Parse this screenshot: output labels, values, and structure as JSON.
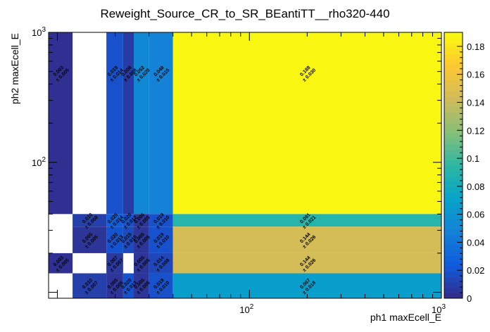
{
  "chart_data": {
    "type": "heatmap",
    "title": "Reweight_Source_CR_to_SR_BEantiTT__rho320-440",
    "xlabel": "ph1 maxEcell_E",
    "ylabel": "ph2 maxEcell_E",
    "x_scale": "log",
    "y_scale": "log",
    "xlim": [
      9,
      1000
    ],
    "ylim": [
      9,
      1000
    ],
    "x_tick_labels": [
      {
        "value": 100,
        "base": "10",
        "exp": "2"
      },
      {
        "value": 1000,
        "base": "10",
        "exp": "3"
      }
    ],
    "y_tick_labels": [
      {
        "value": 100,
        "base": "10",
        "exp": "2"
      },
      {
        "value": 1000,
        "base": "10",
        "exp": "3"
      }
    ],
    "x_edges": [
      9,
      12,
      18,
      22,
      25,
      30,
      40,
      1000
    ],
    "y_edges": [
      9,
      14,
      20,
      32,
      40,
      1000
    ],
    "colorbar": {
      "min": 0,
      "max": 0.19,
      "tick_values": [
        0,
        0.02,
        0.04,
        0.06,
        0.08,
        0.1,
        0.12,
        0.14,
        0.16,
        0.18
      ],
      "tick_labels": [
        "0",
        "0.02",
        "0.04",
        "0.06",
        "0.08",
        "0.1",
        "0.12",
        "0.14",
        "0.16",
        "0.18"
      ]
    },
    "cells": [
      {
        "x0": 9,
        "x1": 12,
        "y0": 40,
        "y1": 1000,
        "value": 0.003,
        "label": "0.003",
        "error": "± 0.005"
      },
      {
        "x0": 18,
        "x1": 22,
        "y0": 40,
        "y1": 1000,
        "value": 0.019,
        "label": "0.019",
        "error": "± 0.014"
      },
      {
        "x0": 22,
        "x1": 25,
        "y0": 40,
        "y1": 1000,
        "value": 0.008,
        "label": "0.008",
        "error": "± 0.008"
      },
      {
        "x0": 25,
        "x1": 30,
        "y0": 40,
        "y1": 1000,
        "value": 0.052,
        "label": "0.052",
        "error": "± 0.020"
      },
      {
        "x0": 30,
        "x1": 40,
        "y0": 40,
        "y1": 1000,
        "value": 0.048,
        "label": "0.048",
        "error": "± 0.015"
      },
      {
        "x0": 40,
        "x1": 1000,
        "y0": 40,
        "y1": 1000,
        "value": 0.188,
        "label": "0.188",
        "error": "± 0.030"
      },
      {
        "x0": 12,
        "x1": 18,
        "y0": 32,
        "y1": 40,
        "value": 0.01,
        "label": "0.010",
        "error": "± 0.008"
      },
      {
        "x0": 18,
        "x1": 22,
        "y0": 32,
        "y1": 40,
        "value": 0.025,
        "label": "0.025",
        "error": "± 0.014"
      },
      {
        "x0": 22,
        "x1": 25,
        "y0": 32,
        "y1": 40,
        "value": 0.02,
        "label": "0.020",
        "error": "± 0.012"
      },
      {
        "x0": 25,
        "x1": 30,
        "y0": 32,
        "y1": 40,
        "value": 0.005,
        "label": "0.005",
        "error": "± 0.005"
      },
      {
        "x0": 30,
        "x1": 40,
        "y0": 32,
        "y1": 40,
        "value": 0.019,
        "label": "0.019",
        "error": "± 0.010"
      },
      {
        "x0": 40,
        "x1": 1000,
        "y0": 32,
        "y1": 40,
        "value": 0.091,
        "label": "0.091",
        "error": "± 0.021"
      },
      {
        "x0": 12,
        "x1": 18,
        "y0": 20,
        "y1": 32,
        "value": 0.005,
        "label": "0.005",
        "error": "± 0.005"
      },
      {
        "x0": 18,
        "x1": 22,
        "y0": 20,
        "y1": 32,
        "value": 0.02,
        "label": "0.020",
        "error": "± 0.013"
      },
      {
        "x0": 22,
        "x1": 25,
        "y0": 20,
        "y1": 32,
        "value": 0.015,
        "label": "0.015",
        "error": "± 0.010"
      },
      {
        "x0": 25,
        "x1": 30,
        "y0": 20,
        "y1": 32,
        "value": 0.005,
        "label": "0.005",
        "error": "± 0.005"
      },
      {
        "x0": 30,
        "x1": 40,
        "y0": 20,
        "y1": 32,
        "value": 0.019,
        "label": "0.019",
        "error": "± 0.010"
      },
      {
        "x0": 40,
        "x1": 1000,
        "y0": 20,
        "y1": 32,
        "value": 0.144,
        "label": "0.144",
        "error": "± 0.026"
      },
      {
        "x0": 9,
        "x1": 12,
        "y0": 14,
        "y1": 20,
        "value": 0.003,
        "label": "0.003",
        "error": "± 0.005"
      },
      {
        "x0": 18,
        "x1": 22,
        "y0": 14,
        "y1": 20,
        "value": 0.007,
        "label": "0.007",
        "error": "± 0.007"
      },
      {
        "x0": 25,
        "x1": 30,
        "y0": 14,
        "y1": 20,
        "value": 0.005,
        "label": "0.005",
        "error": "± 0.005"
      },
      {
        "x0": 30,
        "x1": 40,
        "y0": 14,
        "y1": 20,
        "value": 0.014,
        "label": "0.014",
        "error": "± 0.008"
      },
      {
        "x0": 40,
        "x1": 1000,
        "y0": 14,
        "y1": 20,
        "value": 0.144,
        "label": "0.144",
        "error": "± 0.026"
      },
      {
        "x0": 12,
        "x1": 18,
        "y0": 9,
        "y1": 14,
        "value": 0.01,
        "label": "0.010",
        "error": "± 0.007"
      },
      {
        "x0": 18,
        "x1": 22,
        "y0": 9,
        "y1": 14,
        "value": 0.005,
        "label": "0.005",
        "error": "± 0.005"
      },
      {
        "x0": 22,
        "x1": 25,
        "y0": 9,
        "y1": 14,
        "value": 0.02,
        "label": "0.020",
        "error": "± 0.013"
      },
      {
        "x0": 25,
        "x1": 30,
        "y0": 9,
        "y1": 14,
        "value": 0.005,
        "label": "0.005",
        "error": "± 0.005"
      },
      {
        "x0": 30,
        "x1": 40,
        "y0": 9,
        "y1": 14,
        "value": 0.019,
        "label": "0.019",
        "error": "± 0.010"
      },
      {
        "x0": 40,
        "x1": 1000,
        "y0": 9,
        "y1": 14,
        "value": 0.067,
        "label": "0.067",
        "error": "± 0.018"
      }
    ]
  },
  "colors": {
    "palette": [
      "#352a87",
      "#0f5cdd",
      "#1481d6",
      "#06a4ca",
      "#2eb7a4",
      "#87bf77",
      "#d1bb59",
      "#fec832",
      "#f9fb0e"
    ],
    "empty": "#ffffff",
    "axis": "#000000"
  }
}
